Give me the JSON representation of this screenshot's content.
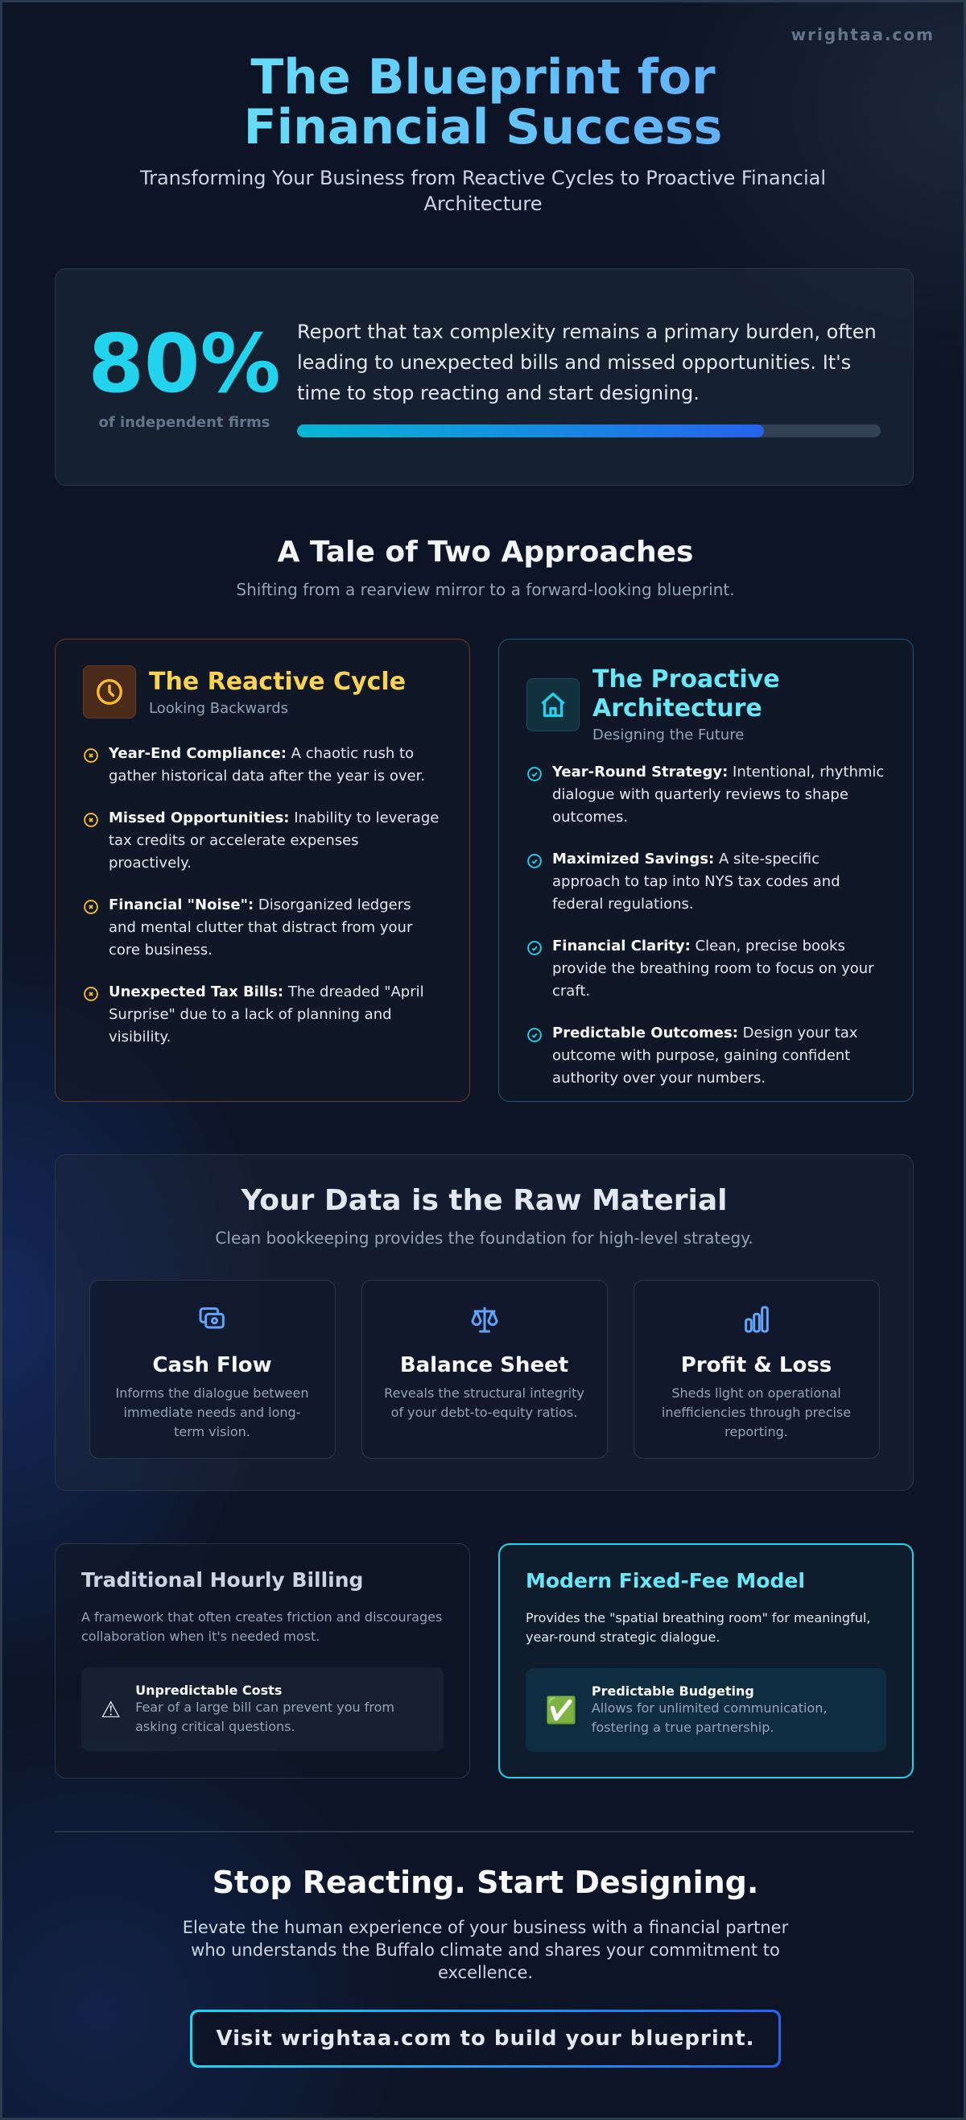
{
  "brand": "wrightaa.com",
  "hero": {
    "title": "The Blueprint for Financial Success",
    "subtitle": "Transforming Your Business from Reactive Cycles to Proactive Financial Architecture"
  },
  "stat": {
    "value": "80%",
    "label": "of independent firms",
    "text": "Report that tax complexity remains a primary burden, often leading to unexpected bills and missed opportunities. It's time to stop reacting and start designing.",
    "progress_percent": 80
  },
  "tale": {
    "title": "A Tale of Two Approaches",
    "subtitle": "Shifting from a rearview mirror to a forward-looking blueprint."
  },
  "reactive": {
    "icon": "clock-icon",
    "title": "The Reactive Cycle",
    "subtitle": "Looking Backwards",
    "accent": "#fbbf24",
    "items": [
      {
        "bold": "Year-End Compliance:",
        "text": " A chaotic rush to gather historical data after the year is over."
      },
      {
        "bold": "Missed Opportunities:",
        "text": " Inability to leverage tax credits or accelerate expenses proactively."
      },
      {
        "bold": "Financial \"Noise\":",
        "text": " Disorganized ledgers and mental clutter that distract from your core business."
      },
      {
        "bold": "Unexpected Tax Bills:",
        "text": " The dreaded \"April Surprise\" due to a lack of planning and visibility."
      }
    ]
  },
  "proactive": {
    "icon": "house-icon",
    "title": "The Proactive Architecture",
    "subtitle": "Designing the Future",
    "accent": "#22d3ee",
    "items": [
      {
        "bold": "Year-Round Strategy:",
        "text": " Intentional, rhythmic dialogue with quarterly reviews to shape outcomes."
      },
      {
        "bold": "Maximized Savings:",
        "text": " A site-specific approach to tap into NYS tax codes and federal regulations."
      },
      {
        "bold": "Financial Clarity:",
        "text": " Clean, precise books provide the breathing room to focus on your craft."
      },
      {
        "bold": "Predictable Outcomes:",
        "text": " Design your tax outcome with purpose, gaining confident authority over your numbers."
      }
    ]
  },
  "data": {
    "title": "Your Data is the Raw Material",
    "subtitle": "Clean bookkeeping provides the foundation for high-level strategy.",
    "tiles": [
      {
        "icon": "cash-icon",
        "title": "Cash Flow",
        "text": "Informs the dialogue between immediate needs and long-term vision."
      },
      {
        "icon": "scale-icon",
        "title": "Balance Sheet",
        "text": "Reveals the structural integrity of your debt-to-equity ratios."
      },
      {
        "icon": "bar-chart-icon",
        "title": "Profit & Loss",
        "text": "Sheds light on operational inefficiencies through precise reporting."
      }
    ]
  },
  "pricing": {
    "old": {
      "title": "Traditional Hourly Billing",
      "text": "A framework that often creates friction and discourages collaboration when it's needed most.",
      "note_icon": "⚠",
      "note_title": "Unpredictable Costs",
      "note_text": "Fear of a large bill can prevent you from asking critical questions."
    },
    "new": {
      "title": "Modern Fixed-Fee Model",
      "text": "Provides the \"spatial breathing room\" for meaningful, year-round strategic dialogue.",
      "note_icon": "✅",
      "note_title": "Predictable Budgeting",
      "note_text": "Allows for unlimited communication, fostering a true partnership."
    }
  },
  "cta": {
    "title": "Stop Reacting. Start Designing.",
    "text": "Elevate the human experience of your business with a financial partner who understands the Buffalo climate and shares your commitment to excellence.",
    "button": "Visit wrightaa.com to build your blueprint."
  }
}
